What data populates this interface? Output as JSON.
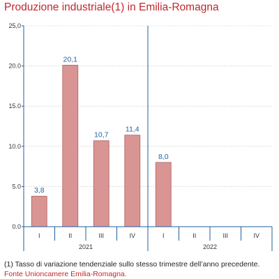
{
  "header": {
    "title": "Produzione industriale(1) in Emilia-Romagna"
  },
  "footer": {
    "note": "(1) Tasso di variazione tendenziale sullo stesso trimestre dell’anno precedente.",
    "source": "Fonte Unioncamere Emilia-Romagna."
  },
  "colors": {
    "bar": "#d99594",
    "bar_border": "#b0605f",
    "data_label": "#1f5f9e",
    "axis": "#1f5f9e",
    "grid": "#b8b8b8",
    "title": "#c0272d"
  },
  "chart_data": {
    "type": "bar",
    "categories": [
      "I",
      "II",
      "III",
      "IV",
      "I",
      "II",
      "III",
      "IV"
    ],
    "groups": [
      {
        "label": "2021",
        "span": [
          0,
          3
        ]
      },
      {
        "label": "2022",
        "span": [
          4,
          7
        ]
      }
    ],
    "values": [
      3.8,
      20.1,
      10.7,
      11.4,
      8.0,
      null,
      null,
      null
    ],
    "value_labels": [
      "3,8",
      "20,1",
      "10,7",
      "11,4",
      "8,0",
      "",
      "",
      ""
    ],
    "ylim": [
      0,
      25
    ],
    "yticks": [
      0,
      5,
      10,
      15,
      20,
      25
    ],
    "ytick_labels": [
      "0.0",
      "5.0",
      "10.0",
      "15.0",
      "20.0",
      "25,0"
    ],
    "grid": "horizontal dotted",
    "xlabel": "",
    "ylabel": ""
  }
}
